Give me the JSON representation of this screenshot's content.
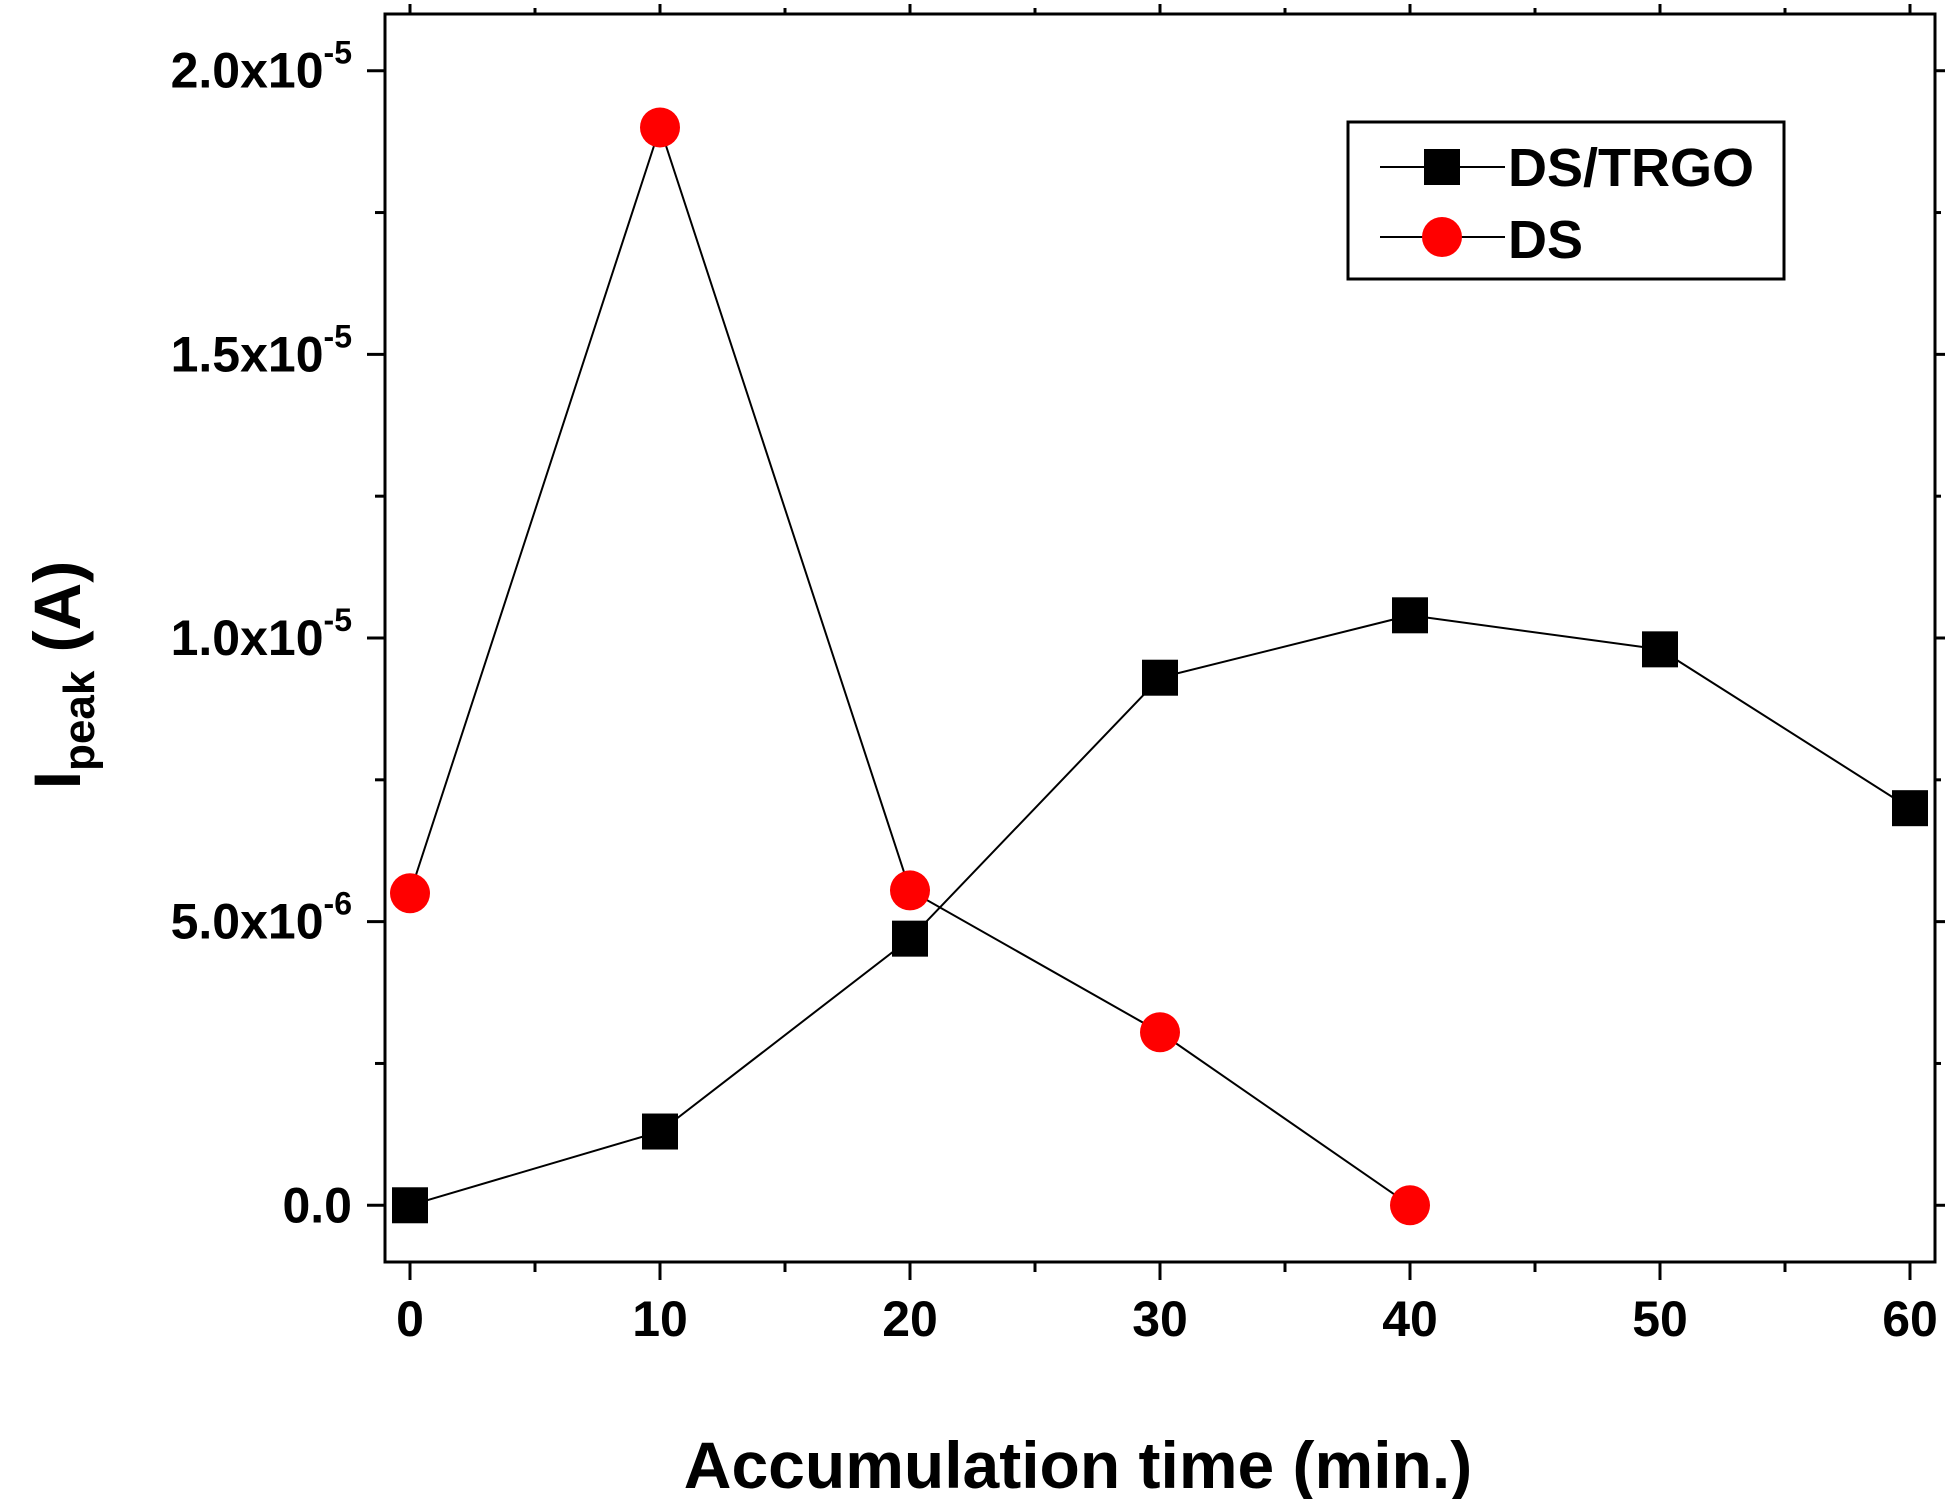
{
  "chart_data": {
    "type": "line",
    "title": "",
    "xlabel": "Accumulation time (min.)",
    "ylabel": {
      "main": "I",
      "subscript": "peak",
      "unit": " (A)"
    },
    "xlim": [
      -1,
      61
    ],
    "ylim": [
      -1e-06,
      2.1e-05
    ],
    "x_ticks": [
      0,
      10,
      20,
      30,
      40,
      50,
      60
    ],
    "x_tick_labels": [
      "0",
      "10",
      "20",
      "30",
      "40",
      "50",
      "60"
    ],
    "y_ticks": [
      0,
      5e-06,
      1e-05,
      1.5e-05,
      2e-05
    ],
    "y_tick_labels": [
      {
        "mantissa": "0.0",
        "exponent": ""
      },
      {
        "mantissa": "5.0x10",
        "exponent": "-6"
      },
      {
        "mantissa": "1.0x10",
        "exponent": "-5"
      },
      {
        "mantissa": "1.5x10",
        "exponent": "-5"
      },
      {
        "mantissa": "2.0x10",
        "exponent": "-5"
      }
    ],
    "legend_position": "top-right",
    "series": [
      {
        "name": "DS/TRGO",
        "marker": "square",
        "color": "#000000",
        "x": [
          0,
          10,
          20,
          30,
          40,
          50,
          60
        ],
        "values": [
          0.0,
          1.3e-06,
          4.7e-06,
          9.3e-06,
          1.04e-05,
          9.8e-06,
          7e-06
        ]
      },
      {
        "name": "DS",
        "marker": "circle",
        "color": "#ff0000",
        "x": [
          0,
          10,
          20,
          30,
          40
        ],
        "values": [
          5.5e-06,
          1.9e-05,
          5.55e-06,
          3.05e-06,
          0.0
        ]
      }
    ]
  }
}
